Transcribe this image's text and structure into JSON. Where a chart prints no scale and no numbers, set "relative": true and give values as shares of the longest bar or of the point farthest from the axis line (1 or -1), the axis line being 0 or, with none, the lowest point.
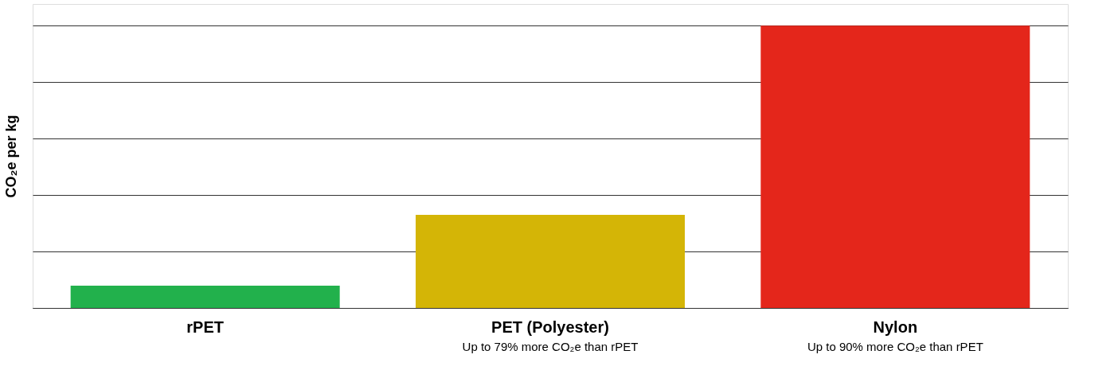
{
  "chart_data": {
    "type": "bar",
    "relative": true,
    "ylabel": "CO₂e per kg",
    "categories": [
      "rPET",
      "PET (Polyester)",
      "Nylon"
    ],
    "values": [
      0.079,
      0.33,
      1
    ],
    "colors": [
      "#22b14c",
      "#d4b506",
      "#e4261b"
    ],
    "grid": "y",
    "tick_labels": "x",
    "annotations": [
      "Up to 79% more CO₂e than rPET",
      "Up to 90% more CO₂e than rPET"
    ]
  }
}
